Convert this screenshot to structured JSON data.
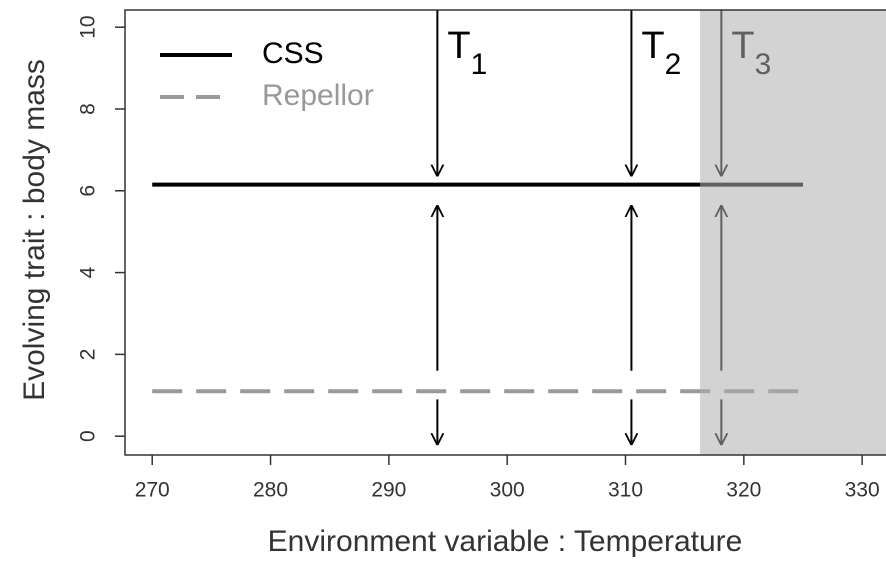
{
  "chart_data": {
    "type": "line",
    "xlabel": "Environment variable : Temperature",
    "ylabel": "Evolving trait : body mass",
    "xlim": [
      267.7,
      332.1
    ],
    "ylim": [
      -0.46,
      10.42
    ],
    "xticks": [
      270,
      280,
      290,
      300,
      310,
      320,
      330
    ],
    "yticks": [
      0,
      2,
      4,
      6,
      8,
      10
    ],
    "series": [
      {
        "name": "CSS",
        "color": "#000000",
        "dash": false,
        "x": [
          270,
          325
        ],
        "values": [
          6.15,
          6.15
        ]
      },
      {
        "name": "Repellor",
        "color": "#999999",
        "dash": true,
        "x": [
          270,
          325
        ],
        "values": [
          1.1,
          1.1
        ]
      }
    ],
    "legend": "upper left",
    "shade": [
      316.3,
      332.1
    ],
    "annotations": [
      {
        "text": "T",
        "sub": "1",
        "x": 294.1
      },
      {
        "text": "T",
        "sub": "2",
        "x": 310.5
      },
      {
        "text": "T",
        "sub": "3",
        "x": 318.1
      }
    ],
    "arrows": [
      {
        "from": 10.42,
        "to": 6.35
      },
      {
        "from": 1.6,
        "to": 5.65
      },
      {
        "from": 0.9,
        "to": -0.22
      }
    ]
  }
}
